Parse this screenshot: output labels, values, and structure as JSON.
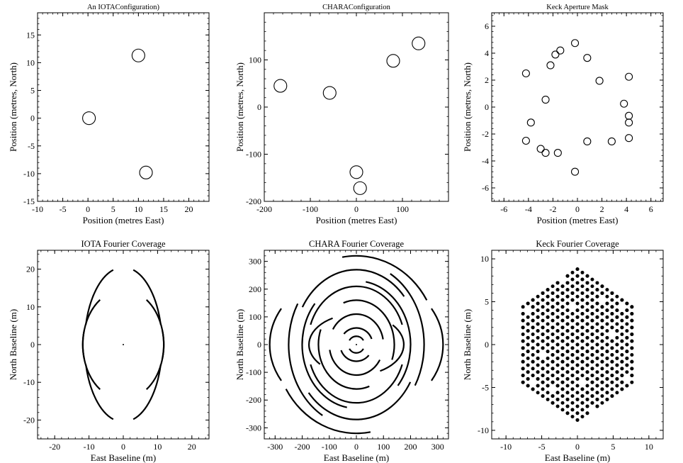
{
  "chart_data": [
    {
      "type": "scatter",
      "title": "An IOTAConfiguration)",
      "xlabel": "Position (metres East)",
      "ylabel": "Position (metres, North)",
      "xlim": [
        -10,
        24
      ],
      "ylim": [
        -15,
        19
      ],
      "xticks": [
        -10,
        -5,
        0,
        5,
        10,
        15,
        20
      ],
      "yticks": [
        -15,
        -10,
        -5,
        0,
        5,
        10,
        15
      ],
      "grid": false,
      "marker": "open-circle",
      "points": [
        {
          "x": 0.2,
          "y": 0
        },
        {
          "x": 10,
          "y": 11.3
        },
        {
          "x": 11.5,
          "y": -9.8
        }
      ]
    },
    {
      "type": "scatter",
      "title": "CHARAConfiguration",
      "xlabel": "Position (metres East)",
      "ylabel": "Position (metres, North)",
      "xlim": [
        -200,
        200
      ],
      "ylim": [
        -200,
        200
      ],
      "xticks": [
        -200,
        -100,
        0,
        100
      ],
      "yticks": [
        -200,
        -100,
        0,
        100
      ],
      "grid": false,
      "marker": "open-circle",
      "points": [
        {
          "x": -165,
          "y": 45
        },
        {
          "x": -58,
          "y": 30
        },
        {
          "x": 0,
          "y": -138
        },
        {
          "x": 8,
          "y": -172
        },
        {
          "x": 80,
          "y": 98
        },
        {
          "x": 135,
          "y": 135
        }
      ]
    },
    {
      "type": "scatter",
      "title": "Keck Aperture Mask",
      "xlabel": "Position (metres East)",
      "ylabel": "Position (metres, North)",
      "xlim": [
        -7,
        7
      ],
      "ylim": [
        -7,
        7
      ],
      "xticks": [
        -6,
        -4,
        -2,
        0,
        2,
        4,
        6
      ],
      "yticks": [
        -6,
        -4,
        -2,
        0,
        2,
        4,
        6
      ],
      "grid": false,
      "marker": "open-circle",
      "points": [
        {
          "x": -0.2,
          "y": 4.75
        },
        {
          "x": -1.4,
          "y": 4.2
        },
        {
          "x": -1.8,
          "y": 3.9
        },
        {
          "x": -2.2,
          "y": 3.1
        },
        {
          "x": 0.8,
          "y": 3.65
        },
        {
          "x": -4.2,
          "y": 2.5
        },
        {
          "x": 4.2,
          "y": 2.25
        },
        {
          "x": 1.8,
          "y": 1.95
        },
        {
          "x": -2.6,
          "y": 0.55
        },
        {
          "x": 3.8,
          "y": 0.25
        },
        {
          "x": 4.2,
          "y": -0.65
        },
        {
          "x": -3.8,
          "y": -1.15
        },
        {
          "x": 4.2,
          "y": -1.15
        },
        {
          "x": -4.2,
          "y": -2.5
        },
        {
          "x": 4.2,
          "y": -2.3
        },
        {
          "x": 0.8,
          "y": -2.55
        },
        {
          "x": 2.8,
          "y": -2.55
        },
        {
          "x": -3.0,
          "y": -3.1
        },
        {
          "x": -2.6,
          "y": -3.4
        },
        {
          "x": -1.6,
          "y": -3.4
        },
        {
          "x": -0.2,
          "y": -4.8
        }
      ]
    },
    {
      "type": "line",
      "title": "IOTA Fourier Coverage",
      "xlabel": "East Baseline (m)",
      "ylabel": "North Baseline (m)",
      "xlim": [
        -25,
        25
      ],
      "ylim": [
        -25,
        25
      ],
      "xticks": [
        -20,
        -10,
        0,
        10,
        20
      ],
      "yticks": [
        -20,
        -10,
        0,
        10,
        20
      ],
      "grid": false,
      "center_dot": {
        "x": 0,
        "y": 0
      },
      "arcs": [
        {
          "rx": 11.3,
          "ry": 20.5,
          "a1": 15,
          "a2": 75
        },
        {
          "rx": 11.3,
          "ry": 20.5,
          "a1": 105,
          "a2": 165
        },
        {
          "rx": 11.3,
          "ry": 20.5,
          "a1": 195,
          "a2": 255
        },
        {
          "rx": 11.3,
          "ry": 20.5,
          "a1": 285,
          "a2": 345
        },
        {
          "rx": 11.8,
          "ry": 14.5,
          "a1": -15,
          "a2": 55
        },
        {
          "rx": 11.8,
          "ry": 14.5,
          "a1": 125,
          "a2": 195
        },
        {
          "rx": 11.8,
          "ry": 14.5,
          "a1": 165,
          "a2": 235
        },
        {
          "rx": 11.8,
          "ry": 14.5,
          "a1": 305,
          "a2": 375
        }
      ]
    },
    {
      "type": "line",
      "title": "CHARA Fourier Coverage",
      "xlabel": "East Baseline (m)",
      "ylabel": "North Baseline (m)",
      "xlim": [
        -340,
        340
      ],
      "ylim": [
        -340,
        340
      ],
      "xticks": [
        -300,
        -200,
        -100,
        0,
        100,
        200,
        300
      ],
      "yticks": [
        -300,
        -200,
        -100,
        0,
        100,
        200,
        300
      ],
      "grid": false,
      "center_dot": {
        "x": 0,
        "y": 0
      },
      "arcs": [
        {
          "rx": 30,
          "ry": 30,
          "a1": 30,
          "a2": 150
        },
        {
          "rx": 30,
          "ry": 30,
          "a1": 210,
          "a2": 330
        },
        {
          "rx": 60,
          "ry": 60,
          "a1": 20,
          "a2": 140
        },
        {
          "rx": 60,
          "ry": 60,
          "a1": 200,
          "a2": 320
        },
        {
          "rx": 100,
          "ry": 110,
          "a1": 10,
          "a2": 150
        },
        {
          "rx": 100,
          "ry": 110,
          "a1": 190,
          "a2": 330
        },
        {
          "rx": 140,
          "ry": 160,
          "a1": -20,
          "a2": 110
        },
        {
          "rx": 140,
          "ry": 160,
          "a1": 160,
          "a2": 290
        },
        {
          "rx": 180,
          "ry": 210,
          "a1": 20,
          "a2": 160
        },
        {
          "rx": 180,
          "ry": 210,
          "a1": 200,
          "a2": 340
        },
        {
          "rx": 200,
          "ry": 230,
          "a1": -40,
          "a2": 80
        },
        {
          "rx": 200,
          "ry": 230,
          "a1": 140,
          "a2": 260
        },
        {
          "rx": 230,
          "ry": 270,
          "a1": 40,
          "a2": 150
        },
        {
          "rx": 230,
          "ry": 270,
          "a1": 220,
          "a2": 330
        },
        {
          "rx": 250,
          "ry": 295,
          "a1": -30,
          "a2": 60
        },
        {
          "rx": 250,
          "ry": 295,
          "a1": 150,
          "a2": 240
        },
        {
          "rx": 300,
          "ry": 320,
          "a1": 30,
          "a2": 100
        },
        {
          "rx": 300,
          "ry": 320,
          "a1": 210,
          "a2": 280
        },
        {
          "rx": 320,
          "ry": 260,
          "a1": -30,
          "a2": 30
        },
        {
          "rx": 320,
          "ry": 260,
          "a1": 150,
          "a2": 210
        },
        {
          "rx": 175,
          "ry": 110,
          "a1": -60,
          "a2": 40
        },
        {
          "rx": 175,
          "ry": 110,
          "a1": 120,
          "a2": 220
        }
      ]
    },
    {
      "type": "scatter",
      "title": "Keck Fourier Coverage",
      "xlabel": "East Baseline (m)",
      "ylabel": "North Baseline (m)",
      "xlim": [
        -12,
        12
      ],
      "ylim": [
        -11,
        11
      ],
      "xticks": [
        -10,
        -5,
        0,
        5,
        10
      ],
      "yticks": [
        -10,
        -5,
        0,
        5,
        10
      ],
      "grid": false,
      "marker": "filled-dot",
      "hexagon_grid": {
        "spacing": 0.8,
        "radius_x": 8.2,
        "radius_y": 9.4,
        "fill_fraction": 0.78
      }
    }
  ]
}
